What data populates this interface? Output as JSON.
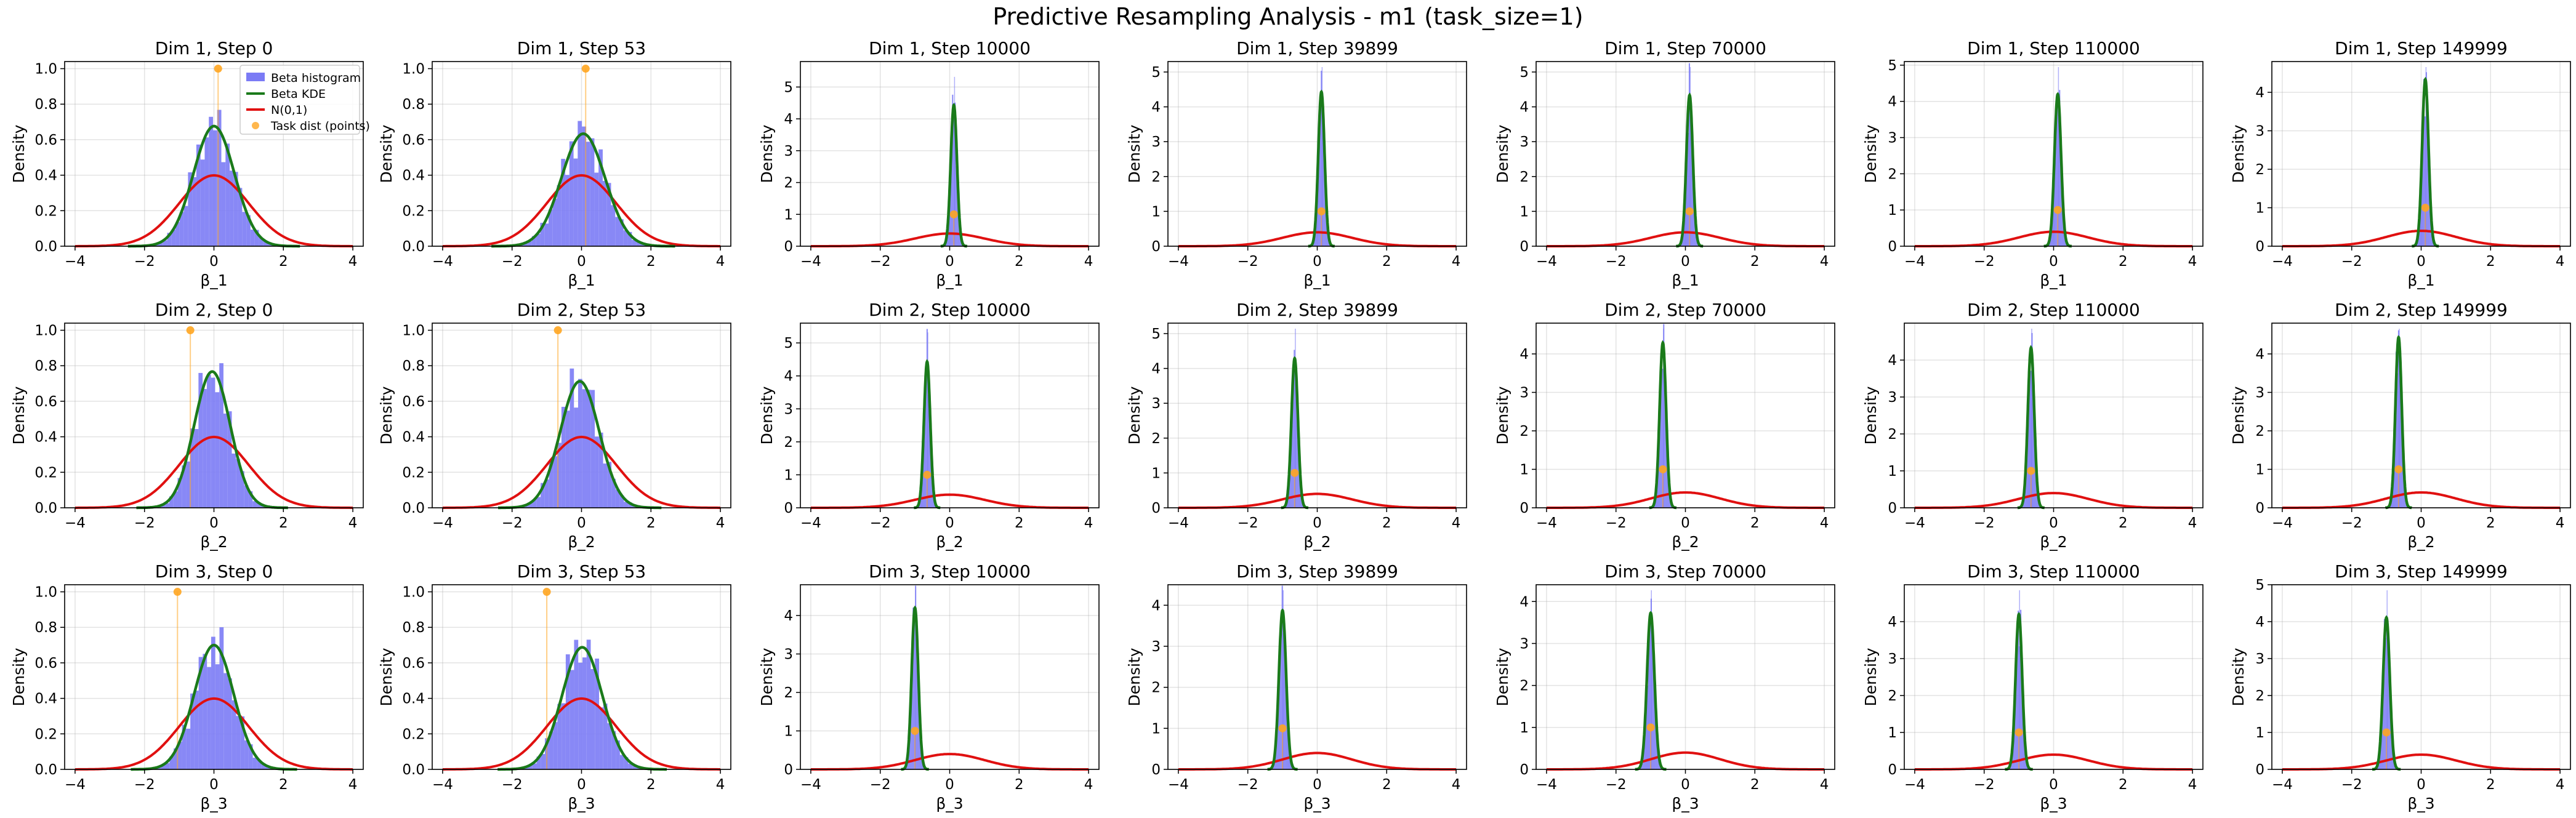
{
  "figure_title": "Predictive Resampling Analysis - m1 (task_size=1)",
  "colors": {
    "histogram": "#7b7bf5",
    "kde": "#1a7a1a",
    "normal": "#e01010",
    "task": "#ffa520"
  },
  "legend": {
    "items": [
      {
        "label": "Beta histogram",
        "kind": "patch",
        "color": "#7b7bf5"
      },
      {
        "label": "Beta KDE",
        "kind": "line",
        "color": "#1a7a1a"
      },
      {
        "label": "N(0,1)",
        "kind": "line",
        "color": "#e01010"
      },
      {
        "label": "Task dist (points)",
        "kind": "point",
        "color": "#ffa520"
      }
    ],
    "placement": "upper right of first panel"
  },
  "chart_data": [
    {
      "type": "histogram+line",
      "title": "Dim 1, Step 0",
      "xlabel": "β_1",
      "ylabel": "Density",
      "xlim": [
        -4.3,
        4.3
      ],
      "ylim": [
        0,
        1.04
      ],
      "yticks": [
        0.0,
        0.2,
        0.4,
        0.6,
        0.8,
        1.0
      ],
      "xticks": [
        -4,
        -2,
        0,
        2,
        4
      ],
      "grid": true,
      "kde_mean": 0.0,
      "kde_std": 0.59,
      "normal": {
        "mean": 0,
        "std": 1
      },
      "task_points": [
        {
          "x": 0.12,
          "y": 1.0
        }
      ]
    },
    {
      "type": "histogram+line",
      "title": "Dim 1, Step 53",
      "xlabel": "β_1",
      "ylabel": "Density",
      "xlim": [
        -4.3,
        4.3
      ],
      "ylim": [
        0,
        1.04
      ],
      "yticks": [
        0.0,
        0.2,
        0.4,
        0.6,
        0.8,
        1.0
      ],
      "xticks": [
        -4,
        -2,
        0,
        2,
        4
      ],
      "grid": true,
      "kde_mean": 0.05,
      "kde_std": 0.63,
      "normal": {
        "mean": 0,
        "std": 1
      },
      "task_points": [
        {
          "x": 0.12,
          "y": 1.0
        }
      ]
    },
    {
      "type": "histogram+line",
      "title": "Dim 1, Step 10000",
      "xlabel": "β_1",
      "ylabel": "Density",
      "xlim": [
        -4.3,
        4.3
      ],
      "ylim": [
        0,
        5.8
      ],
      "yticks": [
        0,
        1,
        2,
        3,
        4,
        5
      ],
      "xticks": [
        -4,
        -2,
        0,
        2,
        4
      ],
      "grid": true,
      "kde_mean": 0.12,
      "kde_std": 0.09,
      "normal": {
        "mean": 0,
        "std": 1
      },
      "task_points": [
        {
          "x": 0.12,
          "y": 1.0
        }
      ]
    },
    {
      "type": "histogram+line",
      "title": "Dim 1, Step 39899",
      "xlabel": "β_1",
      "ylabel": "Density",
      "xlim": [
        -4.3,
        4.3
      ],
      "ylim": [
        0,
        5.3
      ],
      "yticks": [
        0,
        1,
        2,
        3,
        4,
        5
      ],
      "xticks": [
        -4,
        -2,
        0,
        2,
        4
      ],
      "grid": true,
      "kde_mean": 0.12,
      "kde_std": 0.09,
      "normal": {
        "mean": 0,
        "std": 1
      },
      "task_points": [
        {
          "x": 0.12,
          "y": 1.0
        }
      ]
    },
    {
      "type": "histogram+line",
      "title": "Dim 1, Step 70000",
      "xlabel": "β_1",
      "ylabel": "Density",
      "xlim": [
        -4.3,
        4.3
      ],
      "ylim": [
        0,
        5.3
      ],
      "yticks": [
        0,
        1,
        2,
        3,
        4,
        5
      ],
      "xticks": [
        -4,
        -2,
        0,
        2,
        4
      ],
      "grid": true,
      "kde_mean": 0.12,
      "kde_std": 0.092,
      "normal": {
        "mean": 0,
        "std": 1
      },
      "task_points": [
        {
          "x": 0.12,
          "y": 1.0
        }
      ]
    },
    {
      "type": "histogram+line",
      "title": "Dim 1, Step 110000",
      "xlabel": "β_1",
      "ylabel": "Density",
      "xlim": [
        -4.3,
        4.3
      ],
      "ylim": [
        0,
        5.1
      ],
      "yticks": [
        0,
        1,
        2,
        3,
        4,
        5
      ],
      "xticks": [
        -4,
        -2,
        0,
        2,
        4
      ],
      "grid": true,
      "kde_mean": 0.12,
      "kde_std": 0.095,
      "normal": {
        "mean": 0,
        "std": 1
      },
      "task_points": [
        {
          "x": 0.12,
          "y": 1.0
        }
      ]
    },
    {
      "type": "histogram+line",
      "title": "Dim 1, Step 149999",
      "xlabel": "β_1",
      "ylabel": "Density",
      "xlim": [
        -4.3,
        4.3
      ],
      "ylim": [
        0,
        4.8
      ],
      "yticks": [
        0,
        1,
        2,
        3,
        4
      ],
      "xticks": [
        -4,
        -2,
        0,
        2,
        4
      ],
      "grid": true,
      "kde_mean": 0.12,
      "kde_std": 0.092,
      "normal": {
        "mean": 0,
        "std": 1
      },
      "task_points": [
        {
          "x": 0.12,
          "y": 1.0
        }
      ]
    },
    {
      "type": "histogram+line",
      "title": "Dim 2, Step 0",
      "xlabel": "β_2",
      "ylabel": "Density",
      "xlim": [
        -4.3,
        4.3
      ],
      "ylim": [
        0,
        1.04
      ],
      "yticks": [
        0.0,
        0.2,
        0.4,
        0.6,
        0.8,
        1.0
      ],
      "xticks": [
        -4,
        -2,
        0,
        2,
        4
      ],
      "grid": true,
      "kde_mean": -0.05,
      "kde_std": 0.52,
      "normal": {
        "mean": 0,
        "std": 1
      },
      "task_points": [
        {
          "x": -0.68,
          "y": 1.0
        }
      ]
    },
    {
      "type": "histogram+line",
      "title": "Dim 2, Step 53",
      "xlabel": "β_2",
      "ylabel": "Density",
      "xlim": [
        -4.3,
        4.3
      ],
      "ylim": [
        0,
        1.04
      ],
      "yticks": [
        0.0,
        0.2,
        0.4,
        0.6,
        0.8,
        1.0
      ],
      "xticks": [
        -4,
        -2,
        0,
        2,
        4
      ],
      "grid": true,
      "kde_mean": -0.05,
      "kde_std": 0.56,
      "normal": {
        "mean": 0,
        "std": 1
      },
      "task_points": [
        {
          "x": -0.68,
          "y": 1.0
        }
      ]
    },
    {
      "type": "histogram+line",
      "title": "Dim 2, Step 10000",
      "xlabel": "β_2",
      "ylabel": "Density",
      "xlim": [
        -4.3,
        4.3
      ],
      "ylim": [
        0,
        5.6
      ],
      "yticks": [
        0,
        1,
        2,
        3,
        4,
        5
      ],
      "xticks": [
        -4,
        -2,
        0,
        2,
        4
      ],
      "grid": true,
      "kde_mean": -0.65,
      "kde_std": 0.09,
      "normal": {
        "mean": 0,
        "std": 1
      },
      "task_points": [
        {
          "x": -0.65,
          "y": 1.0
        }
      ]
    },
    {
      "type": "histogram+line",
      "title": "Dim 2, Step 39899",
      "xlabel": "β_2",
      "ylabel": "Density",
      "xlim": [
        -4.3,
        4.3
      ],
      "ylim": [
        0,
        5.3
      ],
      "yticks": [
        0,
        1,
        2,
        3,
        4,
        5
      ],
      "xticks": [
        -4,
        -2,
        0,
        2,
        4
      ],
      "grid": true,
      "kde_mean": -0.65,
      "kde_std": 0.093,
      "normal": {
        "mean": 0,
        "std": 1
      },
      "task_points": [
        {
          "x": -0.65,
          "y": 1.0
        }
      ]
    },
    {
      "type": "histogram+line",
      "title": "Dim 2, Step 70000",
      "xlabel": "β_2",
      "ylabel": "Density",
      "xlim": [
        -4.3,
        4.3
      ],
      "ylim": [
        0,
        4.8
      ],
      "yticks": [
        0,
        1,
        2,
        3,
        4
      ],
      "xticks": [
        -4,
        -2,
        0,
        2,
        4
      ],
      "grid": true,
      "kde_mean": -0.65,
      "kde_std": 0.093,
      "normal": {
        "mean": 0,
        "std": 1
      },
      "task_points": [
        {
          "x": -0.65,
          "y": 1.0
        }
      ]
    },
    {
      "type": "histogram+line",
      "title": "Dim 2, Step 110000",
      "xlabel": "β_2",
      "ylabel": "Density",
      "xlim": [
        -4.3,
        4.3
      ],
      "ylim": [
        0,
        5.0
      ],
      "yticks": [
        0,
        1,
        2,
        3,
        4
      ],
      "xticks": [
        -4,
        -2,
        0,
        2,
        4
      ],
      "grid": true,
      "kde_mean": -0.65,
      "kde_std": 0.092,
      "normal": {
        "mean": 0,
        "std": 1
      },
      "task_points": [
        {
          "x": -0.65,
          "y": 1.0
        }
      ]
    },
    {
      "type": "histogram+line",
      "title": "Dim 2, Step 149999",
      "xlabel": "β_2",
      "ylabel": "Density",
      "xlim": [
        -4.3,
        4.3
      ],
      "ylim": [
        0,
        4.8
      ],
      "yticks": [
        0,
        1,
        2,
        3,
        4
      ],
      "xticks": [
        -4,
        -2,
        0,
        2,
        4
      ],
      "grid": true,
      "kde_mean": -0.65,
      "kde_std": 0.09,
      "normal": {
        "mean": 0,
        "std": 1
      },
      "task_points": [
        {
          "x": -0.65,
          "y": 1.0
        }
      ]
    },
    {
      "type": "histogram+line",
      "title": "Dim 3, Step 0",
      "xlabel": "β_3",
      "ylabel": "Density",
      "xlim": [
        -4.3,
        4.3
      ],
      "ylim": [
        0,
        1.04
      ],
      "yticks": [
        0.0,
        0.2,
        0.4,
        0.6,
        0.8,
        1.0
      ],
      "xticks": [
        -4,
        -2,
        0,
        2,
        4
      ],
      "grid": true,
      "kde_mean": 0.0,
      "kde_std": 0.57,
      "normal": {
        "mean": 0,
        "std": 1
      },
      "task_points": [
        {
          "x": -1.05,
          "y": 1.0
        }
      ]
    },
    {
      "type": "histogram+line",
      "title": "Dim 3, Step 53",
      "xlabel": "β_3",
      "ylabel": "Density",
      "xlim": [
        -4.3,
        4.3
      ],
      "ylim": [
        0,
        1.04
      ],
      "yticks": [
        0.0,
        0.2,
        0.4,
        0.6,
        0.8,
        1.0
      ],
      "xticks": [
        -4,
        -2,
        0,
        2,
        4
      ],
      "grid": true,
      "kde_mean": 0.02,
      "kde_std": 0.58,
      "normal": {
        "mean": 0,
        "std": 1
      },
      "task_points": [
        {
          "x": -1.0,
          "y": 1.0
        }
      ]
    },
    {
      "type": "histogram+line",
      "title": "Dim 3, Step 10000",
      "xlabel": "β_3",
      "ylabel": "Density",
      "xlim": [
        -4.3,
        4.3
      ],
      "ylim": [
        0,
        4.8
      ],
      "yticks": [
        0,
        1,
        2,
        3,
        4
      ],
      "xticks": [
        -4,
        -2,
        0,
        2,
        4
      ],
      "grid": true,
      "kde_mean": -1.0,
      "kde_std": 0.095,
      "normal": {
        "mean": 0,
        "std": 1
      },
      "task_points": [
        {
          "x": -1.0,
          "y": 1.0
        }
      ]
    },
    {
      "type": "histogram+line",
      "title": "Dim 3, Step 39899",
      "xlabel": "β_3",
      "ylabel": "Density",
      "xlim": [
        -4.3,
        4.3
      ],
      "ylim": [
        0,
        4.5
      ],
      "yticks": [
        0,
        1,
        2,
        3,
        4
      ],
      "xticks": [
        -4,
        -2,
        0,
        2,
        4
      ],
      "grid": true,
      "kde_mean": -1.0,
      "kde_std": 0.103,
      "normal": {
        "mean": 0,
        "std": 1
      },
      "task_points": [
        {
          "x": -1.0,
          "y": 1.0
        }
      ]
    },
    {
      "type": "histogram+line",
      "title": "Dim 3, Step 70000",
      "xlabel": "β_3",
      "ylabel": "Density",
      "xlim": [
        -4.3,
        4.3
      ],
      "ylim": [
        0,
        4.4
      ],
      "yticks": [
        0,
        1,
        2,
        3,
        4
      ],
      "xticks": [
        -4,
        -2,
        0,
        2,
        4
      ],
      "grid": true,
      "kde_mean": -1.0,
      "kde_std": 0.107,
      "normal": {
        "mean": 0,
        "std": 1
      },
      "task_points": [
        {
          "x": -1.0,
          "y": 1.0
        }
      ]
    },
    {
      "type": "histogram+line",
      "title": "Dim 3, Step 110000",
      "xlabel": "β_3",
      "ylabel": "Density",
      "xlim": [
        -4.3,
        4.3
      ],
      "ylim": [
        0,
        5.0
      ],
      "yticks": [
        0,
        1,
        2,
        3,
        4
      ],
      "xticks": [
        -4,
        -2,
        0,
        2,
        4
      ],
      "grid": true,
      "kde_mean": -1.0,
      "kde_std": 0.095,
      "normal": {
        "mean": 0,
        "std": 1
      },
      "task_points": [
        {
          "x": -1.0,
          "y": 1.0
        }
      ]
    },
    {
      "type": "histogram+line",
      "title": "Dim 3, Step 149999",
      "xlabel": "β_3",
      "ylabel": "Density",
      "xlim": [
        -4.3,
        4.3
      ],
      "ylim": [
        0,
        5.0
      ],
      "yticks": [
        0,
        1,
        2,
        3,
        4,
        5
      ],
      "xticks": [
        -4,
        -2,
        0,
        2,
        4
      ],
      "grid": true,
      "kde_mean": -1.0,
      "kde_std": 0.097,
      "normal": {
        "mean": 0,
        "std": 1
      },
      "task_points": [
        {
          "x": -1.0,
          "y": 1.0
        }
      ]
    }
  ]
}
